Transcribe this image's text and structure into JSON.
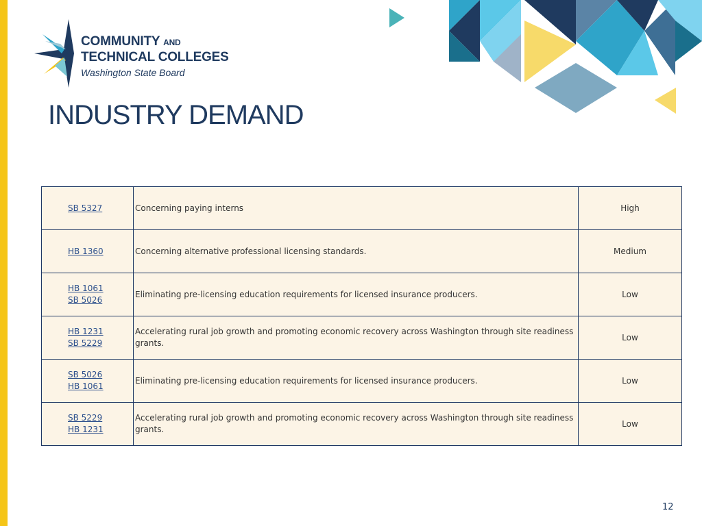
{
  "logo": {
    "line1": "COMMUNITY",
    "line1_small": "AND",
    "line2": "TECHNICAL COLLEGES",
    "line3": "Washington State Board"
  },
  "title": "INDUSTRY DEMAND",
  "table": {
    "rows": [
      {
        "bills": [
          "SB 5327"
        ],
        "description": "Concerning paying interns",
        "demand": "High"
      },
      {
        "bills": [
          "HB 1360"
        ],
        "description": "Concerning alternative professional licensing standards.",
        "demand": "Medium"
      },
      {
        "bills": [
          "HB 1061",
          "SB 5026"
        ],
        "description": "Eliminating pre-licensing education requirements for licensed insurance producers.",
        "demand": "Low"
      },
      {
        "bills": [
          "HB 1231",
          "SB 5229"
        ],
        "description": "Accelerating rural job growth and promoting economic recovery across Washington through site readiness grants.",
        "demand": "Low"
      },
      {
        "bills": [
          "SB 5026",
          "HB 1061"
        ],
        "description": "Eliminating pre-licensing education requirements for licensed insurance producers.",
        "demand": "Low"
      },
      {
        "bills": [
          "SB 5229",
          "HB 1231"
        ],
        "description": "Accelerating rural job growth and promoting economic recovery across Washington through site readiness grants.",
        "demand": "Low"
      }
    ]
  },
  "page_number": "12"
}
